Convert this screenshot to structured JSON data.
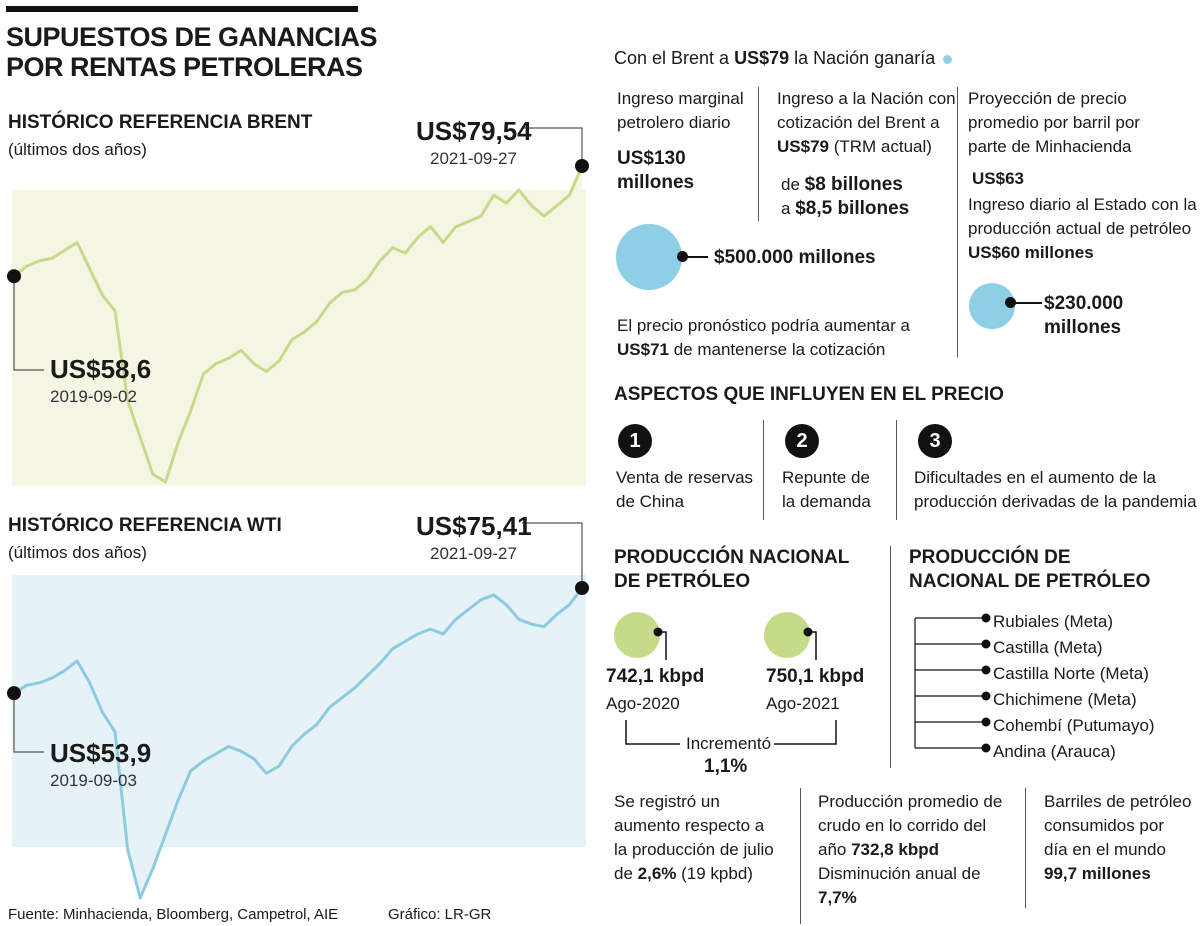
{
  "title_line1": "SUPUESTOS DE GANANCIAS",
  "title_line2": "POR RENTAS PETROLERAS",
  "brent": {
    "heading": "HISTÓRICO REFERENCIA BRENT",
    "sub": "(últimos dos años)",
    "start_value": "US$58,6",
    "start_date": "2019-09-02",
    "end_value": "US$79,54",
    "end_date": "2021-09-27"
  },
  "wti": {
    "heading": "HISTÓRICO REFERENCIA WTI",
    "sub": "(últimos dos años)",
    "start_value": "US$53,9",
    "start_date": "2019-09-03",
    "end_value": "US$75,41",
    "end_date": "2021-09-27"
  },
  "chart_data": [
    {
      "type": "area",
      "series": [
        {
          "values": [
            58.6,
            60.5,
            61.5,
            62.0,
            63.5,
            65.0,
            60.0,
            55.0,
            52.0,
            35.0,
            28.0,
            21.0,
            19.5,
            27.0,
            33.0,
            40.0,
            42.0,
            43.0,
            44.5,
            42.0,
            40.5,
            42.5,
            46.5,
            48.0,
            50.0,
            53.5,
            55.5,
            56.0,
            58.0,
            61.5,
            64.0,
            63.0,
            66.0,
            68.0,
            65.0,
            68.0,
            69.0,
            70.0,
            74.0,
            72.5,
            75.0,
            72.0,
            70.0,
            72.0,
            74.0,
            79.54
          ]
        }
      ],
      "x_start": "2019-09-02",
      "x_end": "2021-09-27",
      "color": "#c9d98b"
    },
    {
      "type": "area",
      "series": [
        {
          "values": [
            53.9,
            55.5,
            56.0,
            57.0,
            58.5,
            60.5,
            56.0,
            50.0,
            46.0,
            22.0,
            12.0,
            18.0,
            25.0,
            32.0,
            38.0,
            40.0,
            41.5,
            43.0,
            42.0,
            40.5,
            37.5,
            39.0,
            43.0,
            45.5,
            47.5,
            51.0,
            53.0,
            55.0,
            57.5,
            60.0,
            63.0,
            64.5,
            66.0,
            67.0,
            66.0,
            69.0,
            71.0,
            73.0,
            74.0,
            72.0,
            69.0,
            68.0,
            67.5,
            70.0,
            72.0,
            75.41
          ]
        }
      ],
      "x_start": "2019-09-03",
      "x_end": "2021-09-27",
      "color": "#8ccbe0"
    }
  ],
  "right": {
    "brent_line_a": "Con el Brent a ",
    "brent_line_b": "US$79",
    "brent_line_c": " la Nación ganaría",
    "col1": {
      "l1": "Ingreso marginal",
      "l2": "petrolero diario",
      "v1": "US$130",
      "v2": "millones"
    },
    "col2": {
      "l1": "Ingreso a la Nación con",
      "l2": "cotización del Brent a",
      "l3b": "US$79",
      "l3": " (TRM actual)",
      "r1a": "de ",
      "r1b": "$8 billones",
      "r2a": "a ",
      "r2b": "$8,5 billones"
    },
    "circle1_label": "$500.000 millones",
    "forecast_l1": "El precio pronóstico podría aumentar a",
    "forecast_b": "US$71",
    "forecast_l2": " de mantenerse la cotización",
    "col3": {
      "l1": "Proyección de precio",
      "l2": "promedio por barril por",
      "l3": "parte de Minhacienda",
      "v": "US$63",
      "d1": "Ingreso diario al Estado con la",
      "d2": "producción actual de petróleo",
      "dv": "US$60 millones",
      "c1": "$230.000",
      "c2": "millones"
    },
    "aspects_title": "ASPECTOS QUE INFLUYEN EN EL PRECIO",
    "aspects": [
      {
        "n": "1",
        "l1": "Venta de reservas",
        "l2": "de China"
      },
      {
        "n": "2",
        "l1": "Repunte de",
        "l2": "la demanda"
      },
      {
        "n": "3",
        "l1": "Dificultades en el aumento de la",
        "l2": "producción derivadas de la pandemia"
      }
    ],
    "prod_title1": "PRODUCCIÓN NACIONAL",
    "prod_title2": "DE PETRÓLEO",
    "prod_a_val": "742,1 kbpd",
    "prod_a_date": "Ago-2020",
    "prod_b_val": "750,1 kbpd",
    "prod_b_date": "Ago-2021",
    "incr_label": "Incrementó",
    "incr_val": "1,1%",
    "fields_title1": "PRODUCCIÓN DE",
    "fields_title2": "NACIONAL DE PETRÓLEO",
    "fields": [
      "Rubiales (Meta)",
      "Castilla (Meta)",
      "Castilla Norte (Meta)",
      "Chichimene (Meta)",
      "Cohembí (Putumayo)",
      "Andina (Arauca)"
    ],
    "b1": {
      "l1": "Se registró un",
      "l2": "aumento respecto a",
      "l3": "la producción de julio",
      "l4a": "de ",
      "l4b": "2,6%",
      "l4c": " (19 kpbd)"
    },
    "b2": {
      "l1": "Producción promedio de",
      "l2": "crudo en lo corrido del",
      "l3a": "año ",
      "l3b": "732,8 kbpd",
      "l4": "Disminución anual de",
      "l5": "7,7%"
    },
    "b3": {
      "l1": "Barriles de petróleo",
      "l2": "consumidos por",
      "l3": "día en el mundo",
      "l4": "99,7 millones"
    }
  },
  "footer": {
    "source": "Fuente: Minhacienda, Bloomberg, Campetrol, AIE",
    "credit": "Gráfico: LR-GR"
  },
  "colors": {
    "brent_fill": "#f4f6e3",
    "brent_line": "#c9d98b",
    "wti_fill": "#e6f2f8",
    "wti_line": "#8ccbe0",
    "blue_circle": "#8ecfe5",
    "green_circle": "#c5db8a"
  }
}
